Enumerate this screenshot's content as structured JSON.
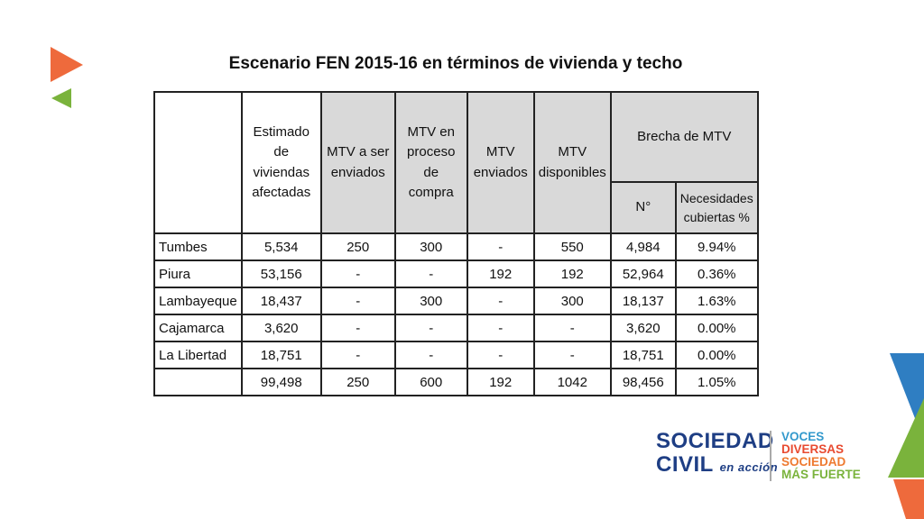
{
  "slide": {
    "title": "Escenario FEN 2015-16 en términos de vivienda y techo"
  },
  "table": {
    "headers": {
      "estimado": "Estimado de viviendas afectadas",
      "mtv_enviar": "MTV a ser enviados",
      "mtv_compra": "MTV en proceso de compra",
      "mtv_enviados": "MTV enviados",
      "mtv_disponibles": "MTV disponibles",
      "brecha": "Brecha de MTV",
      "brecha_n": "N°",
      "brecha_necesidades": "Necesidades cubiertas %"
    },
    "rows": [
      {
        "region": "Tumbes",
        "estimado": "5,534",
        "enviar": "250",
        "compra": "300",
        "enviados": "-",
        "disponibles": "550",
        "brecha": "4,984",
        "pct": "9.94%"
      },
      {
        "region": "Piura",
        "estimado": "53,156",
        "enviar": "-",
        "compra": "-",
        "enviados": "192",
        "disponibles": "192",
        "brecha": "52,964",
        "pct": "0.36%"
      },
      {
        "region": "Lambayeque",
        "estimado": "18,437",
        "enviar": "-",
        "compra": "300",
        "enviados": "-",
        "disponibles": "300",
        "brecha": "18,137",
        "pct": "1.63%"
      },
      {
        "region": "Cajamarca",
        "estimado": "3,620",
        "enviar": "-",
        "compra": "-",
        "enviados": "-",
        "disponibles": "-",
        "brecha": "3,620",
        "pct": "0.00%"
      },
      {
        "region": "La Libertad",
        "estimado": "18,751",
        "enviar": "-",
        "compra": "-",
        "enviados": "-",
        "disponibles": "-",
        "brecha": "18,751",
        "pct": "0.00%"
      }
    ],
    "total": {
      "estimado": "99,498",
      "enviar": "250",
      "compra": "600",
      "enviados": "192",
      "disponibles": "1042",
      "brecha": "98,456",
      "pct": "1.05%"
    }
  },
  "logo": {
    "line1": "SOCIEDAD",
    "line2": "CIVIL",
    "line2_suffix": "en acción",
    "tagline": [
      "VOCES",
      "DIVERSAS",
      "SOCIEDAD",
      "MÁS FUERTE"
    ]
  },
  "colors": {
    "orange": "#ee6a3c",
    "green": "#7ab33c",
    "navy": "#1e3e84",
    "blue": "#3399cc",
    "header_shade": "#d9d9d9"
  }
}
